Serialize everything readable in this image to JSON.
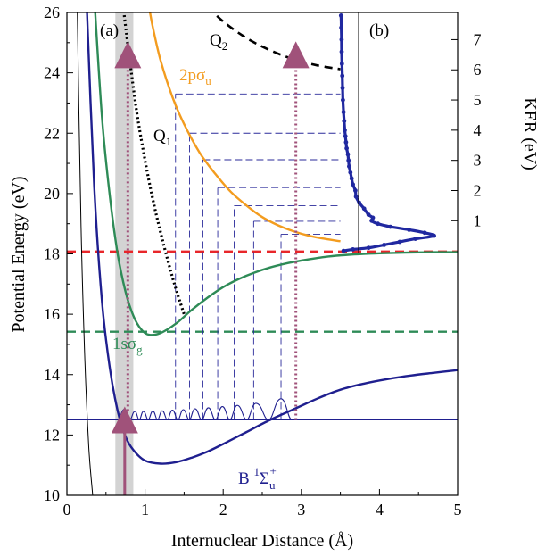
{
  "chart_data": {
    "type": "line",
    "panel_a_label": "(a)",
    "panel_b_label": "(b)",
    "xlabel": "Internuclear Distance (Å)",
    "ylabel": "Potential Energy (eV)",
    "y2label": "KER (eV)",
    "xlim": [
      0,
      5
    ],
    "ylim": [
      10,
      26
    ],
    "xticks": [
      "0",
      "1",
      "2",
      "3",
      "4",
      "5"
    ],
    "yticks": [
      "10",
      "12",
      "14",
      "16",
      "18",
      "20",
      "22",
      "24",
      "26"
    ],
    "y2ticks": [
      "1",
      "2",
      "3",
      "4",
      "5",
      "6",
      "7"
    ],
    "colors": {
      "B_state": "#1f1f8f",
      "sigma_g": "#2e8b57",
      "sigma_u": "#f39c1f",
      "Q1": "#000000",
      "Q2": "#000000",
      "red_limit": "#e8262a",
      "green_limit": "#2e8b57",
      "pump_arrow": "#a0527a",
      "ker_trace": "#2028a0",
      "vertical_band": "#c8c8c8",
      "projection_lines": "#2a2a9a"
    },
    "labels": {
      "B_state": {
        "main": "B ",
        "sup": "1",
        "sym": "Σ",
        "sub": "u",
        "sup2": "+"
      },
      "sigma_g": {
        "main": "1sσ",
        "sub": "g"
      },
      "sigma_u": {
        "main": "2pσ",
        "sub": "u"
      },
      "Q1": {
        "main": "Q",
        "sub": "1"
      },
      "Q2": {
        "main": "Q",
        "sub": "2"
      }
    },
    "series": [
      {
        "key": "B_state",
        "x": [
          0.25,
          0.35,
          0.45,
          0.55,
          0.65,
          0.75,
          0.85,
          1.0,
          1.2,
          1.4,
          1.6,
          1.8,
          2.0,
          2.3,
          2.6,
          2.9,
          3.2,
          3.5,
          3.8,
          4.1,
          4.4,
          4.7,
          5.0
        ],
        "y": [
          26.5,
          20.2,
          16.4,
          14.2,
          12.8,
          11.95,
          11.5,
          11.15,
          11.05,
          11.1,
          11.25,
          11.45,
          11.7,
          12.1,
          12.5,
          12.85,
          13.2,
          13.5,
          13.7,
          13.85,
          13.97,
          14.06,
          14.15
        ]
      },
      {
        "key": "sigma_g",
        "x": [
          0.35,
          0.45,
          0.55,
          0.65,
          0.75,
          0.85,
          0.95,
          1.05,
          1.2,
          1.4,
          1.6,
          1.8,
          2.0,
          2.2,
          2.4,
          2.6,
          2.8,
          3.0,
          3.3,
          3.6,
          4.0,
          4.5,
          5.0
        ],
        "y": [
          26.5,
          22.5,
          19.9,
          18.0,
          16.75,
          15.95,
          15.5,
          15.32,
          15.38,
          15.7,
          16.15,
          16.55,
          16.9,
          17.17,
          17.38,
          17.55,
          17.68,
          17.78,
          17.9,
          17.97,
          18.02,
          18.05,
          18.06
        ]
      },
      {
        "key": "sigma_u",
        "x": [
          1.05,
          1.1,
          1.2,
          1.35,
          1.5,
          1.7,
          1.9,
          2.1,
          2.3,
          2.5,
          2.7,
          2.9,
          3.1,
          3.3,
          3.5
        ],
        "y": [
          26.2,
          25.5,
          24.4,
          23.2,
          22.3,
          21.35,
          20.65,
          20.05,
          19.6,
          19.22,
          18.95,
          18.75,
          18.6,
          18.5,
          18.42
        ]
      },
      {
        "key": "Q1",
        "x": [
          0.72,
          0.8,
          0.9,
          1.0,
          1.1,
          1.2,
          1.3,
          1.4,
          1.5
        ],
        "y": [
          26.2,
          24.5,
          22.6,
          21.1,
          19.8,
          18.7,
          17.7,
          16.8,
          16.0
        ]
      },
      {
        "key": "Q2",
        "x": [
          1.8,
          2.0,
          2.3,
          2.6,
          2.9,
          3.2,
          3.5
        ],
        "y": [
          26.2,
          25.7,
          25.15,
          24.75,
          24.45,
          24.25,
          24.12
        ]
      },
      {
        "key": "inner_wall",
        "x": [
          0.13,
          0.18,
          0.23,
          0.28,
          0.33
        ],
        "y": [
          26.5,
          19.0,
          14.5,
          11.6,
          10.0
        ]
      }
    ],
    "limits": [
      {
        "key": "red_limit",
        "y": 18.08
      },
      {
        "key": "green_limit",
        "y": 15.42
      }
    ],
    "band": {
      "x0": 0.62,
      "x1": 0.85
    },
    "wavefunction": {
      "baseline": 12.5,
      "peaks_x": [
        0.74,
        0.87,
        0.98,
        1.1,
        1.22,
        1.35,
        1.49,
        1.64,
        1.81,
        1.99,
        2.18,
        2.42,
        2.74
      ],
      "peaks_h": [
        0.36,
        0.28,
        0.28,
        0.29,
        0.3,
        0.32,
        0.34,
        0.37,
        0.4,
        0.44,
        0.48,
        0.55,
        0.7
      ]
    },
    "projection_levels": [
      {
        "x": 1.39,
        "y": 23.3
      },
      {
        "x": 1.57,
        "y": 22.0
      },
      {
        "x": 1.74,
        "y": 21.12
      },
      {
        "x": 1.93,
        "y": 20.2
      },
      {
        "x": 2.14,
        "y": 19.6
      },
      {
        "x": 2.39,
        "y": 19.08
      },
      {
        "x": 2.74,
        "y": 18.65
      }
    ],
    "arrows": [
      {
        "key": "pump_up",
        "x": 0.74,
        "y_from": 10.0,
        "y_to": 12.5,
        "style": "solid"
      },
      {
        "key": "probe_left",
        "x": 0.78,
        "y_from": 12.8,
        "y_to": 24.6,
        "style": "dotted"
      },
      {
        "key": "probe_right",
        "x": 2.93,
        "y_from": 12.5,
        "y_to": 24.6,
        "style": "dotted"
      }
    ],
    "ker_spectrum": {
      "x_baseline": 3.5,
      "ker": [
        0.0,
        0.05,
        0.1,
        0.2,
        0.3,
        0.4,
        0.5,
        0.6,
        0.7,
        0.8,
        0.9,
        1.0,
        1.1,
        1.2,
        1.4,
        1.6,
        1.8,
        2.0,
        2.2,
        2.4,
        2.6,
        2.8,
        3.0,
        3.2,
        3.4,
        3.6,
        3.8,
        4.0,
        4.3,
        4.6,
        5.0,
        5.4,
        5.8,
        6.2,
        6.6,
        7.0,
        7.4,
        7.8,
        8.0
      ],
      "intensity": [
        0.05,
        0.2,
        0.45,
        0.7,
        0.95,
        1.2,
        1.5,
        1.35,
        1.1,
        0.8,
        0.6,
        0.5,
        0.52,
        0.45,
        0.38,
        0.3,
        0.25,
        0.24,
        0.2,
        0.18,
        0.16,
        0.14,
        0.13,
        0.12,
        0.1,
        0.09,
        0.08,
        0.07,
        0.06,
        0.05,
        0.04,
        0.035,
        0.03,
        0.025,
        0.02,
        0.018,
        0.015,
        0.01,
        0.01
      ],
      "ker_per_ev": 1.0,
      "ker_offset": 18.1
    }
  }
}
